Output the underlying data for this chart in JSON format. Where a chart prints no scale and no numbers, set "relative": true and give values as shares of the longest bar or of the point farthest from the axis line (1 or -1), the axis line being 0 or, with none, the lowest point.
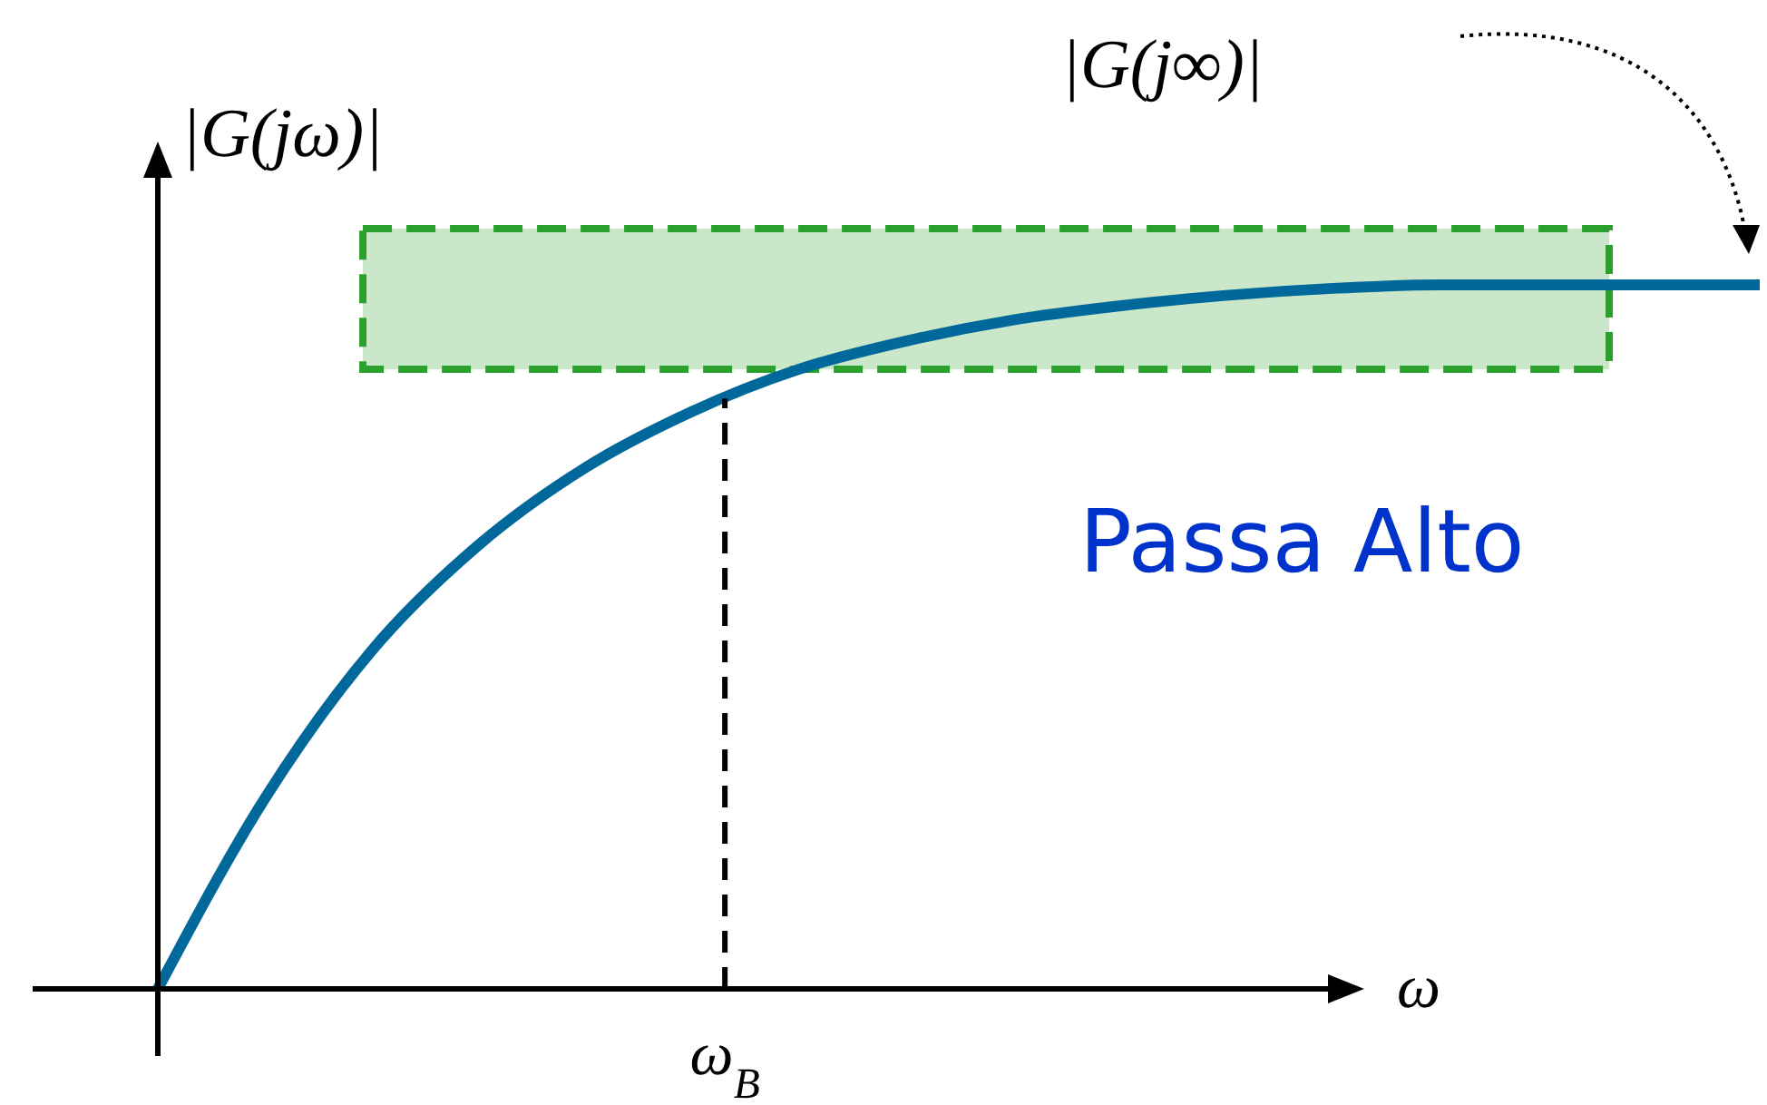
{
  "chart_data": {
    "type": "line",
    "relative": true,
    "xlabel": "ω",
    "ylabel": "|G(jω)|",
    "categories": [
      null,
      null,
      null,
      null,
      null,
      null,
      null,
      null,
      null,
      null,
      null,
      null,
      null,
      null,
      null,
      null
    ],
    "series": [
      {
        "color": "#00689a",
        "values": [
          0,
          0.27,
          0.48,
          0.63,
          0.74,
          0.82,
          0.88,
          0.92,
          0.95,
          0.97,
          0.985,
          0.995,
          1,
          1,
          1,
          1
        ]
      }
    ],
    "bands": [
      {
        "axis": "y",
        "from": 0.88,
        "to": 1.08,
        "color": "#2ca02c"
      }
    ],
    "annotations": [
      "|G(j∞)|",
      "Passa Alto",
      "ω$_{B}$"
    ],
    "line_style": "solid",
    "marker": "none"
  }
}
